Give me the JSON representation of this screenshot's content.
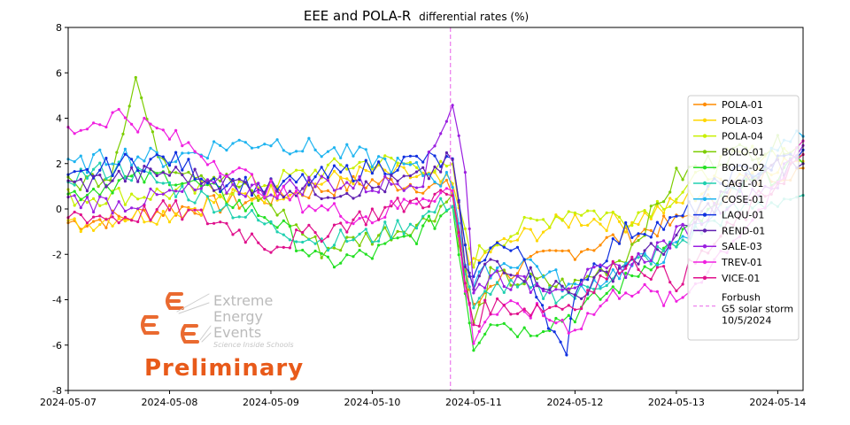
{
  "chart_data": {
    "type": "line",
    "title_main": "EEE and POLA-R",
    "title_sub": "differential rates (%)",
    "xlabel": "",
    "ylabel": "",
    "x_ticks": [
      "2024-05-07",
      "2024-05-08",
      "2024-05-09",
      "2024-05-10",
      "2024-05-11",
      "2024-05-12",
      "2024-05-13",
      "2024-05-14"
    ],
    "xlim": [
      "2024-05-07T00:00",
      "2024-05-14T06:00"
    ],
    "ylim": [
      -8,
      8
    ],
    "y_ticks": [
      -8,
      -6,
      -4,
      -2,
      0,
      2,
      4,
      6,
      8
    ],
    "grid": false,
    "legend_position": "center-right",
    "forbush": {
      "label_lines": [
        "Forbush",
        "G5 solar storm",
        "10/5/2024"
      ],
      "date": "2024-05-10T18:30",
      "color": "#ee82ee"
    },
    "series": [
      {
        "name": "POLA-01",
        "color": "#ff8c00",
        "points": [
          [
            "2024-05-07T00:00",
            -0.6
          ],
          [
            "2024-05-07T12:00",
            -0.4
          ],
          [
            "2024-05-08T00:00",
            0.0
          ],
          [
            "2024-05-08T12:00",
            0.2
          ],
          [
            "2024-05-09T00:00",
            0.5
          ],
          [
            "2024-05-09T12:00",
            0.9
          ],
          [
            "2024-05-10T00:00",
            1.2
          ],
          [
            "2024-05-10T12:00",
            1.1
          ],
          [
            "2024-05-10T19:00",
            0.8
          ],
          [
            "2024-05-10T22:00",
            -2.5
          ],
          [
            "2024-05-11T00:00",
            -4.5
          ],
          [
            "2024-05-11T04:00",
            -3.2
          ],
          [
            "2024-05-11T12:00",
            -2.5
          ],
          [
            "2024-05-12T00:00",
            -1.8
          ],
          [
            "2024-05-12T12:00",
            -1.2
          ],
          [
            "2024-05-13T00:00",
            -0.6
          ],
          [
            "2024-05-13T12:00",
            0.8
          ],
          [
            "2024-05-14T00:00",
            1.6
          ],
          [
            "2024-05-14T06:00",
            1.8
          ]
        ]
      },
      {
        "name": "POLA-03",
        "color": "#ffd700",
        "points": [
          [
            "2024-05-07T00:00",
            -0.8
          ],
          [
            "2024-05-07T12:00",
            -0.3
          ],
          [
            "2024-05-08T00:00",
            -0.2
          ],
          [
            "2024-05-08T12:00",
            0.4
          ],
          [
            "2024-05-09T00:00",
            0.7
          ],
          [
            "2024-05-09T12:00",
            1.2
          ],
          [
            "2024-05-10T00:00",
            1.6
          ],
          [
            "2024-05-10T12:00",
            1.4
          ],
          [
            "2024-05-10T19:00",
            1.0
          ],
          [
            "2024-05-10T22:00",
            -1.5
          ],
          [
            "2024-05-11T00:00",
            -2.6
          ],
          [
            "2024-05-11T04:00",
            -1.8
          ],
          [
            "2024-05-11T12:00",
            -1.2
          ],
          [
            "2024-05-12T00:00",
            -0.4
          ],
          [
            "2024-05-12T12:00",
            -0.6
          ],
          [
            "2024-05-13T00:00",
            0.2
          ],
          [
            "2024-05-13T12:00",
            1.4
          ],
          [
            "2024-05-14T00:00",
            2.0
          ],
          [
            "2024-05-14T06:00",
            2.1
          ]
        ]
      },
      {
        "name": "POLA-04",
        "color": "#c8f000",
        "points": [
          [
            "2024-05-07T00:00",
            0.5
          ],
          [
            "2024-05-07T12:00",
            0.6
          ],
          [
            "2024-05-08T00:00",
            0.7
          ],
          [
            "2024-05-08T12:00",
            0.9
          ],
          [
            "2024-05-09T00:00",
            1.2
          ],
          [
            "2024-05-09T12:00",
            1.7
          ],
          [
            "2024-05-10T00:00",
            2.1
          ],
          [
            "2024-05-10T12:00",
            1.9
          ],
          [
            "2024-05-10T19:00",
            1.6
          ],
          [
            "2024-05-10T22:00",
            -1.2
          ],
          [
            "2024-05-11T00:00",
            -2.2
          ],
          [
            "2024-05-11T04:00",
            -1.5
          ],
          [
            "2024-05-11T12:00",
            -0.8
          ],
          [
            "2024-05-12T00:00",
            0.0
          ],
          [
            "2024-05-12T12:00",
            -0.4
          ],
          [
            "2024-05-13T00:00",
            0.6
          ],
          [
            "2024-05-13T12:00",
            2.2
          ],
          [
            "2024-05-14T00:00",
            2.6
          ],
          [
            "2024-05-14T06:00",
            2.4
          ]
        ]
      },
      {
        "name": "BOLO-01",
        "color": "#7ccd00",
        "points": [
          [
            "2024-05-07T00:00",
            1.0
          ],
          [
            "2024-05-07T10:00",
            1.6
          ],
          [
            "2024-05-07T16:00",
            5.8
          ],
          [
            "2024-05-07T20:00",
            3.0
          ],
          [
            "2024-05-08T00:00",
            2.0
          ],
          [
            "2024-05-08T12:00",
            1.4
          ],
          [
            "2024-05-09T00:00",
            0.2
          ],
          [
            "2024-05-09T12:00",
            -1.8
          ],
          [
            "2024-05-10T00:00",
            -1.2
          ],
          [
            "2024-05-10T12:00",
            -0.6
          ],
          [
            "2024-05-10T19:00",
            0.6
          ],
          [
            "2024-05-10T22:00",
            -3.0
          ],
          [
            "2024-05-11T00:00",
            -5.2
          ],
          [
            "2024-05-11T04:00",
            -3.0
          ],
          [
            "2024-05-11T12:00",
            -3.2
          ],
          [
            "2024-05-12T00:00",
            -3.4
          ],
          [
            "2024-05-12T12:00",
            -2.0
          ],
          [
            "2024-05-13T00:00",
            1.4
          ],
          [
            "2024-05-13T12:00",
            2.4
          ],
          [
            "2024-05-14T00:00",
            2.8
          ],
          [
            "2024-05-14T06:00",
            3.0
          ]
        ]
      },
      {
        "name": "BOLO-02",
        "color": "#22e022",
        "points": [
          [
            "2024-05-07T00:00",
            0.6
          ],
          [
            "2024-05-07T12:00",
            1.2
          ],
          [
            "2024-05-08T00:00",
            1.5
          ],
          [
            "2024-05-08T12:00",
            0.6
          ],
          [
            "2024-05-09T00:00",
            -0.4
          ],
          [
            "2024-05-09T12:00",
            -2.4
          ],
          [
            "2024-05-10T00:00",
            -2.0
          ],
          [
            "2024-05-10T12:00",
            -1.0
          ],
          [
            "2024-05-10T19:00",
            0.2
          ],
          [
            "2024-05-10T22:00",
            -3.6
          ],
          [
            "2024-05-11T00:00",
            -6.0
          ],
          [
            "2024-05-11T04:00",
            -4.8
          ],
          [
            "2024-05-11T12:00",
            -5.4
          ],
          [
            "2024-05-12T00:00",
            -4.6
          ],
          [
            "2024-05-12T12:00",
            -3.2
          ],
          [
            "2024-05-13T00:00",
            -1.4
          ],
          [
            "2024-05-13T12:00",
            0.6
          ],
          [
            "2024-05-14T00:00",
            1.6
          ],
          [
            "2024-05-14T06:00",
            2.0
          ]
        ]
      },
      {
        "name": "CAGL-01",
        "color": "#20d0b0",
        "points": [
          [
            "2024-05-07T00:00",
            1.4
          ],
          [
            "2024-05-07T12:00",
            1.8
          ],
          [
            "2024-05-08T00:00",
            1.0
          ],
          [
            "2024-05-08T12:00",
            0.2
          ],
          [
            "2024-05-09T00:00",
            -0.8
          ],
          [
            "2024-05-09T12:00",
            -1.4
          ],
          [
            "2024-05-10T00:00",
            -1.2
          ],
          [
            "2024-05-10T12:00",
            -0.4
          ],
          [
            "2024-05-10T19:00",
            0.4
          ],
          [
            "2024-05-10T22:00",
            -2.8
          ],
          [
            "2024-05-11T00:00",
            -4.6
          ],
          [
            "2024-05-11T04:00",
            -3.4
          ],
          [
            "2024-05-11T12:00",
            -3.6
          ],
          [
            "2024-05-12T00:00",
            -3.8
          ],
          [
            "2024-05-12T12:00",
            -2.6
          ],
          [
            "2024-05-13T00:00",
            -1.6
          ],
          [
            "2024-05-13T12:00",
            -0.2
          ],
          [
            "2024-05-14T00:00",
            0.4
          ],
          [
            "2024-05-14T06:00",
            0.6
          ]
        ]
      },
      {
        "name": "COSE-01",
        "color": "#1eb4f0",
        "points": [
          [
            "2024-05-07T00:00",
            1.8
          ],
          [
            "2024-05-07T12:00",
            2.4
          ],
          [
            "2024-05-08T00:00",
            2.2
          ],
          [
            "2024-05-08T12:00",
            2.8
          ],
          [
            "2024-05-09T00:00",
            3.0
          ],
          [
            "2024-05-09T12:00",
            2.6
          ],
          [
            "2024-05-10T00:00",
            2.2
          ],
          [
            "2024-05-10T12:00",
            1.6
          ],
          [
            "2024-05-10T19:00",
            1.2
          ],
          [
            "2024-05-10T22:00",
            -2.2
          ],
          [
            "2024-05-11T00:00",
            -3.4
          ],
          [
            "2024-05-11T04:00",
            -2.6
          ],
          [
            "2024-05-11T12:00",
            -2.2
          ],
          [
            "2024-05-12T00:00",
            -3.6
          ],
          [
            "2024-05-12T12:00",
            -2.6
          ],
          [
            "2024-05-13T00:00",
            -1.8
          ],
          [
            "2024-05-13T12:00",
            0.6
          ],
          [
            "2024-05-14T00:00",
            2.6
          ],
          [
            "2024-05-14T06:00",
            3.2
          ]
        ]
      },
      {
        "name": "LAQU-01",
        "color": "#1030e0",
        "points": [
          [
            "2024-05-07T00:00",
            1.2
          ],
          [
            "2024-05-07T12:00",
            2.0
          ],
          [
            "2024-05-08T00:00",
            2.2
          ],
          [
            "2024-05-08T12:00",
            1.2
          ],
          [
            "2024-05-09T00:00",
            0.9
          ],
          [
            "2024-05-09T12:00",
            1.4
          ],
          [
            "2024-05-10T00:00",
            1.8
          ],
          [
            "2024-05-10T12:00",
            2.2
          ],
          [
            "2024-05-10T19:00",
            2.0
          ],
          [
            "2024-05-10T22:00",
            -2.0
          ],
          [
            "2024-05-11T00:00",
            -3.2
          ],
          [
            "2024-05-11T04:00",
            -1.4
          ],
          [
            "2024-05-11T12:00",
            -2.2
          ],
          [
            "2024-05-11T22:00",
            -6.8
          ],
          [
            "2024-05-12T00:00",
            -3.4
          ],
          [
            "2024-05-12T12:00",
            -1.0
          ],
          [
            "2024-05-13T00:00",
            -0.6
          ],
          [
            "2024-05-13T12:00",
            1.4
          ],
          [
            "2024-05-14T00:00",
            2.0
          ],
          [
            "2024-05-14T06:00",
            2.6
          ]
        ]
      },
      {
        "name": "REND-01",
        "color": "#6020b0",
        "points": [
          [
            "2024-05-07T00:00",
            1.0
          ],
          [
            "2024-05-07T12:00",
            1.4
          ],
          [
            "2024-05-08T00:00",
            1.6
          ],
          [
            "2024-05-08T12:00",
            1.2
          ],
          [
            "2024-05-09T00:00",
            1.0
          ],
          [
            "2024-05-09T12:00",
            0.8
          ],
          [
            "2024-05-10T00:00",
            0.9
          ],
          [
            "2024-05-10T12:00",
            1.4
          ],
          [
            "2024-05-10T19:00",
            2.2
          ],
          [
            "2024-05-10T22:00",
            -2.4
          ],
          [
            "2024-05-11T00:00",
            -3.6
          ],
          [
            "2024-05-11T04:00",
            -2.2
          ],
          [
            "2024-05-11T12:00",
            -2.8
          ],
          [
            "2024-05-12T00:00",
            -3.8
          ],
          [
            "2024-05-12T12:00",
            -2.4
          ],
          [
            "2024-05-13T00:00",
            -1.4
          ],
          [
            "2024-05-13T12:00",
            0.8
          ],
          [
            "2024-05-14T00:00",
            1.8
          ],
          [
            "2024-05-14T06:00",
            2.0
          ]
        ]
      },
      {
        "name": "SALE-03",
        "color": "#9a1fe0",
        "points": [
          [
            "2024-05-07T00:00",
            0.4
          ],
          [
            "2024-05-07T12:00",
            0.2
          ],
          [
            "2024-05-08T00:00",
            0.6
          ],
          [
            "2024-05-08T12:00",
            1.0
          ],
          [
            "2024-05-09T00:00",
            0.8
          ],
          [
            "2024-05-09T12:00",
            1.2
          ],
          [
            "2024-05-10T00:00",
            1.0
          ],
          [
            "2024-05-10T12:00",
            1.4
          ],
          [
            "2024-05-10T19:00",
            4.8
          ],
          [
            "2024-05-10T22:00",
            1.8
          ],
          [
            "2024-05-11T00:00",
            -3.8
          ],
          [
            "2024-05-11T04:00",
            -2.8
          ],
          [
            "2024-05-11T12:00",
            -3.4
          ],
          [
            "2024-05-12T00:00",
            -3.2
          ],
          [
            "2024-05-12T12:00",
            -2.6
          ],
          [
            "2024-05-13T00:00",
            -1.2
          ],
          [
            "2024-05-13T12:00",
            0.4
          ],
          [
            "2024-05-14T00:00",
            1.2
          ],
          [
            "2024-05-14T06:00",
            2.8
          ]
        ]
      },
      {
        "name": "TREV-01",
        "color": "#f020e0",
        "points": [
          [
            "2024-05-07T00:00",
            3.4
          ],
          [
            "2024-05-07T12:00",
            4.2
          ],
          [
            "2024-05-08T00:00",
            3.2
          ],
          [
            "2024-05-08T12:00",
            2.0
          ],
          [
            "2024-05-09T00:00",
            0.8
          ],
          [
            "2024-05-09T12:00",
            0.0
          ],
          [
            "2024-05-10T00:00",
            -0.4
          ],
          [
            "2024-05-10T12:00",
            0.6
          ],
          [
            "2024-05-10T19:00",
            0.8
          ],
          [
            "2024-05-10T22:00",
            -3.4
          ],
          [
            "2024-05-11T00:00",
            -5.6
          ],
          [
            "2024-05-11T04:00",
            -4.6
          ],
          [
            "2024-05-11T12:00",
            -4.4
          ],
          [
            "2024-05-12T00:00",
            -5.2
          ],
          [
            "2024-05-12T12:00",
            -3.4
          ],
          [
            "2024-05-13T00:00",
            -4.2
          ],
          [
            "2024-05-13T12:00",
            -1.6
          ],
          [
            "2024-05-14T00:00",
            0.8
          ],
          [
            "2024-05-14T06:00",
            3.0
          ]
        ]
      },
      {
        "name": "VICE-01",
        "color": "#e0108c",
        "points": [
          [
            "2024-05-07T00:00",
            -0.2
          ],
          [
            "2024-05-07T12:00",
            -0.4
          ],
          [
            "2024-05-08T00:00",
            0.0
          ],
          [
            "2024-05-08T12:00",
            -0.6
          ],
          [
            "2024-05-09T00:00",
            -1.6
          ],
          [
            "2024-05-09T12:00",
            -1.0
          ],
          [
            "2024-05-10T00:00",
            -0.2
          ],
          [
            "2024-05-10T12:00",
            0.4
          ],
          [
            "2024-05-10T19:00",
            0.6
          ],
          [
            "2024-05-10T22:00",
            -3.2
          ],
          [
            "2024-05-11T00:00",
            -5.0
          ],
          [
            "2024-05-11T04:00",
            -4.2
          ],
          [
            "2024-05-11T12:00",
            -4.4
          ],
          [
            "2024-05-12T00:00",
            -4.2
          ],
          [
            "2024-05-12T12:00",
            -2.2
          ],
          [
            "2024-05-13T00:00",
            -3.2
          ],
          [
            "2024-05-13T12:00",
            -1.0
          ],
          [
            "2024-05-14T00:00",
            1.2
          ],
          [
            "2024-05-14T06:00",
            2.4
          ]
        ]
      }
    ]
  },
  "watermark": {
    "line1": "Extreme",
    "line2": "Energy",
    "line3": "Events",
    "tagline": "Science Inside Schools",
    "stamp": "Preliminary",
    "logo_color": "#e85a1a"
  }
}
